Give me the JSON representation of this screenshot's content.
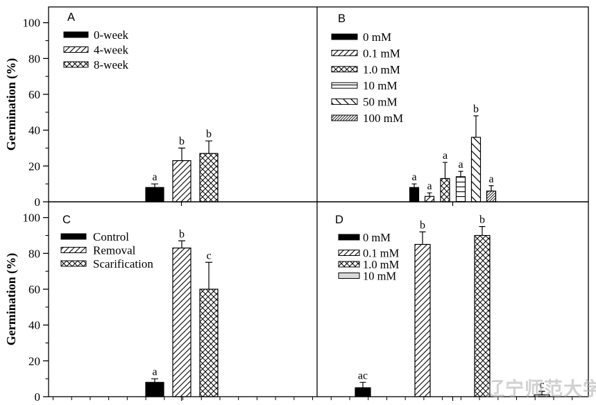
{
  "figure": {
    "background": "#ffffff",
    "axis_color": "#000000",
    "ylabel": "Germination (%)",
    "yticks": [
      0,
      20,
      40,
      60,
      80,
      100
    ],
    "watermark": {
      "text": "辽宁师范大学",
      "color": "#acacac"
    }
  },
  "chart_data": [
    {
      "type": "bar",
      "panel_label": "A",
      "ylabel": "Germination (%)",
      "ylim": [
        0,
        108
      ],
      "grid": false,
      "legend_position": "top-left",
      "categories": [
        "0-week",
        "4-week",
        "8-week"
      ],
      "values": [
        8,
        23,
        27
      ],
      "errors_plus": [
        2,
        7,
        7
      ],
      "sig_letters": [
        "a",
        "b",
        "b"
      ],
      "bar_patterns": [
        "solid-black",
        "diagonal-hatch",
        "crosshatch"
      ]
    },
    {
      "type": "bar",
      "panel_label": "B",
      "ylabel": "Germination (%)",
      "ylim": [
        0,
        108
      ],
      "grid": false,
      "legend_position": "top-left",
      "categories": [
        "0 mM",
        "0.1 mM",
        "1.0 mM",
        "10 mM",
        "50 mM",
        "100 mM"
      ],
      "values": [
        8,
        3,
        13,
        14,
        36,
        6
      ],
      "errors_plus": [
        2,
        2,
        9,
        3,
        12,
        3
      ],
      "sig_letters": [
        "a",
        "a",
        "a",
        "a",
        "b",
        "a"
      ],
      "bar_patterns": [
        "solid-black",
        "diagonal-hatch",
        "crosshatch",
        "horizontal-lines",
        "back-diagonal-hatch",
        "dense-diagonal-hatch"
      ]
    },
    {
      "type": "bar",
      "panel_label": "C",
      "ylabel": "Germination (%)",
      "ylim": [
        0,
        108
      ],
      "grid": false,
      "legend_position": "top-left",
      "categories": [
        "Control",
        "Removal",
        "Scarification"
      ],
      "values": [
        8,
        83,
        60
      ],
      "errors_plus": [
        2,
        4,
        15
      ],
      "sig_letters": [
        "a",
        "b",
        "c"
      ],
      "bar_patterns": [
        "solid-black",
        "diagonal-hatch",
        "crosshatch"
      ]
    },
    {
      "type": "bar",
      "panel_label": "D",
      "ylabel": "Germination (%)",
      "ylim": [
        0,
        108
      ],
      "grid": false,
      "legend_position": "top-left",
      "categories": [
        "0 mM",
        "0.1 mM",
        "1.0 mM",
        "10 mM"
      ],
      "values": [
        5,
        85,
        90,
        1
      ],
      "errors_plus": [
        3,
        7,
        5,
        2
      ],
      "sig_letters": [
        "ac",
        "b",
        "b",
        "c"
      ],
      "bar_patterns": [
        "solid-black",
        "diagonal-hatch",
        "crosshatch",
        "solid-gray"
      ]
    }
  ]
}
